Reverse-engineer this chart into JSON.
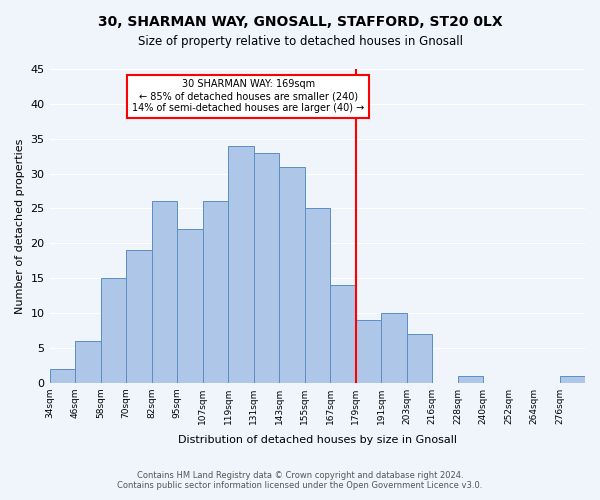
{
  "title": "30, SHARMAN WAY, GNOSALL, STAFFORD, ST20 0LX",
  "subtitle": "Size of property relative to detached houses in Gnosall",
  "xlabel": "Distribution of detached houses by size in Gnosall",
  "ylabel": "Number of detached properties",
  "footer_line1": "Contains HM Land Registry data © Crown copyright and database right 2024.",
  "footer_line2": "Contains public sector information licensed under the Open Government Licence v3.0.",
  "bin_labels": [
    "34sqm",
    "46sqm",
    "58sqm",
    "70sqm",
    "82sqm",
    "95sqm",
    "107sqm",
    "119sqm",
    "131sqm",
    "143sqm",
    "155sqm",
    "167sqm",
    "179sqm",
    "191sqm",
    "203sqm",
    "216sqm",
    "228sqm",
    "240sqm",
    "252sqm",
    "264sqm",
    "276sqm"
  ],
  "bar_heights": [
    2,
    6,
    15,
    19,
    26,
    22,
    26,
    34,
    33,
    31,
    25,
    14,
    9,
    10,
    7,
    0,
    1,
    0,
    0,
    0,
    1
  ],
  "bar_color": "#aec6e8",
  "bar_edge_color": "#5a8fc2",
  "property_line_index": 11,
  "property_line_color": "red",
  "annotation_title": "30 SHARMAN WAY: 169sqm",
  "annotation_line1": "← 85% of detached houses are smaller (240)",
  "annotation_line2": "14% of semi-detached houses are larger (40) →",
  "annotation_box_color": "#ffffff",
  "annotation_box_edge_color": "red",
  "ylim": [
    0,
    45
  ],
  "yticks": [
    0,
    5,
    10,
    15,
    20,
    25,
    30,
    35,
    40,
    45
  ],
  "background_color": "#f0f4fb",
  "grid_color": "#ffffff"
}
